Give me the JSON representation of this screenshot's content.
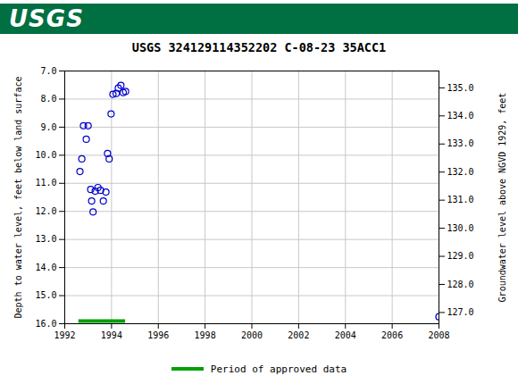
{
  "chart_data": {
    "type": "scatter",
    "logo": "USGS",
    "title": "USGS 324129114352202 C-08-23 35ACC1",
    "y_label": "Depth to water level, feet below land surface",
    "y2_label": "Groundwater level above NGVD 1929, feet",
    "x": [
      1992.65,
      1992.73,
      1992.8,
      1992.92,
      1993.0,
      1993.11,
      1993.15,
      1993.21,
      1993.3,
      1993.42,
      1993.53,
      1993.65,
      1993.76,
      1993.83,
      1993.9,
      1993.98,
      1994.06,
      1994.2,
      1994.29,
      1994.4,
      1994.5,
      1994.6,
      2008.0
    ],
    "values": [
      10.58,
      10.13,
      8.95,
      9.43,
      8.95,
      11.22,
      11.63,
      12.02,
      11.28,
      11.15,
      11.25,
      11.63,
      11.31,
      9.94,
      10.13,
      8.53,
      7.83,
      7.8,
      7.61,
      7.51,
      7.77,
      7.73,
      15.75
    ],
    "color": "#0000cc",
    "marker": "circle",
    "xlim": [
      1992,
      2008
    ],
    "xticks": [
      1992,
      1994,
      1996,
      1998,
      2000,
      2002,
      2004,
      2006,
      2008
    ],
    "ylim": [
      7,
      16
    ],
    "yticks": [
      {
        "value": 7,
        "label": "7.0"
      },
      {
        "value": 8,
        "label": "8.0"
      },
      {
        "value": 9,
        "label": "9.0"
      },
      {
        "value": 10,
        "label": "10.0"
      },
      {
        "value": 11,
        "label": "11.0"
      },
      {
        "value": 12,
        "label": "12.0"
      },
      {
        "value": 13,
        "label": "13.0"
      },
      {
        "value": 14,
        "label": "14.0"
      },
      {
        "value": 15,
        "label": "15.0"
      },
      {
        "value": 16,
        "label": "16.0"
      }
    ],
    "y2lim": [
      135.6,
      126.6
    ],
    "y2ticks": [
      {
        "value": 127,
        "label": "127.0"
      },
      {
        "value": 128,
        "label": "128.0"
      },
      {
        "value": 129,
        "label": "129.0"
      },
      {
        "value": 130,
        "label": "130.0"
      },
      {
        "value": 131,
        "label": "131.0"
      },
      {
        "value": 132,
        "label": "132.0"
      },
      {
        "value": 133,
        "label": "133.0"
      },
      {
        "value": 134,
        "label": "134.0"
      },
      {
        "value": 135,
        "label": "135.0"
      }
    ],
    "approved_period": {
      "name": "Period of approved data",
      "color": "#00a000",
      "x": [
        1992.6,
        1994.6
      ]
    },
    "grid": true,
    "legend": "bottom"
  }
}
